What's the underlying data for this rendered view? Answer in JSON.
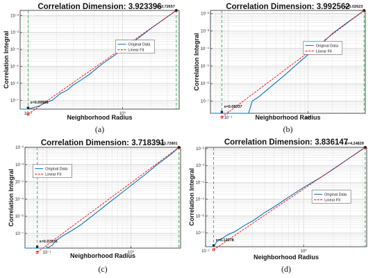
{
  "chart_data": [
    {
      "type": "line",
      "panel_label": "(a)",
      "title": "Correlation Dimension: 3.923396",
      "xlabel": "Neighborhood Radius",
      "ylabel": "Correlation Integral",
      "xscale": "log",
      "yscale": "log",
      "xlim": [
        0.082,
        4.0
      ],
      "ylim": [
        3e-08,
        0.02
      ],
      "xticks": [
        {
          "value": 0.1,
          "label": "10⁻¹"
        },
        {
          "value": 1,
          "label": "10⁰"
        }
      ],
      "yticks": [
        {
          "value": 1e-08,
          "label": "10⁻⁸"
        },
        {
          "value": 1e-07,
          "label": "10⁻⁷"
        },
        {
          "value": 1e-06,
          "label": "10⁻⁶"
        },
        {
          "value": 1e-05,
          "label": "10⁻⁵"
        },
        {
          "value": 0.0001,
          "label": "10⁻⁴"
        },
        {
          "value": 0.001,
          "label": "10⁻³"
        },
        {
          "value": 0.01,
          "label": "10⁻²"
        }
      ],
      "grid": true,
      "legend_position": "upper-middle-right",
      "annotations": [
        {
          "text": "x=0.09956",
          "x": 0.09956
        },
        {
          "text": "x=3.72657",
          "x": 3.72657
        }
      ],
      "vlines": [
        0.09956,
        3.72657
      ],
      "series": [
        {
          "name": "Original Data",
          "color": "#0072BD",
          "x": [
            0.082,
            0.0995,
            0.11,
            0.13,
            0.15,
            0.18,
            0.22,
            0.26,
            0.3,
            0.36,
            0.45,
            0.6,
            0.8,
            1.0,
            1.5,
            2.0,
            3.0,
            3.72657
          ],
          "y": [
            3e-08,
            3e-08,
            3.5e-08,
            4.5e-08,
            7e-08,
            1e-07,
            2.5e-07,
            4e-07,
            8e-07,
            1.5e-06,
            3.5e-06,
            1.3e-05,
            4e-05,
            0.0001,
            0.0005,
            0.0017,
            0.0085,
            0.02
          ]
        },
        {
          "name": "Linear Fit",
          "color": "#FF0000",
          "x": [
            0.09956,
            3.72657
          ],
          "y": [
            1.5e-08,
            0.02
          ]
        }
      ]
    },
    {
      "type": "line",
      "panel_label": "(b)",
      "title": "Correlation Dimension: 3.992562",
      "xlabel": "Neighborhood Radius",
      "ylabel": "Correlation Integral",
      "xscale": "log",
      "yscale": "log",
      "xlim": [
        0.06,
        5.2
      ],
      "ylim": [
        2e-08,
        0.015
      ],
      "xticks": [
        {
          "value": 0.1,
          "label": "10⁻¹"
        },
        {
          "value": 1,
          "label": "10⁰"
        }
      ],
      "yticks": [
        {
          "value": 1e-08,
          "label": "10⁻⁸"
        },
        {
          "value": 1e-07,
          "label": "10⁻⁷"
        },
        {
          "value": 1e-06,
          "label": "10⁻⁶"
        },
        {
          "value": 1e-05,
          "label": "10⁻⁵"
        },
        {
          "value": 0.0001,
          "label": "10⁻⁴"
        },
        {
          "value": 0.001,
          "label": "10⁻³"
        },
        {
          "value": 0.01,
          "label": "10⁻²"
        }
      ],
      "grid": true,
      "legend_position": "upper-middle-right",
      "annotations": [
        {
          "text": "x=0.08337",
          "x": 0.08337
        },
        {
          "text": "x=5.02623",
          "x": 5.02623
        }
      ],
      "vlines": [
        0.08337,
        5.02623
      ],
      "series": [
        {
          "name": "Original Data",
          "color": "#0072BD",
          "x": [
            0.06,
            0.08337,
            0.12,
            0.16,
            0.18,
            0.2,
            0.24,
            0.3,
            0.4,
            0.5,
            0.7,
            1.0,
            1.5,
            2.0,
            3.0,
            4.0,
            5.02623
          ],
          "y": [
            2e-08,
            2e-08,
            2e-08,
            2e-08,
            2e-08,
            1e-07,
            1.7e-07,
            4e-07,
            1.2e-06,
            2.8e-06,
            1.1e-05,
            4.5e-05,
            0.0002,
            0.0007,
            0.0028,
            0.007,
            0.015
          ]
        },
        {
          "name": "Linear Fit",
          "color": "#FF0000",
          "x": [
            0.08337,
            5.02623
          ],
          "y": [
            1.2e-08,
            0.015
          ]
        }
      ]
    },
    {
      "type": "line",
      "panel_label": "(c)",
      "title": "Correlation Dimension: 3.718391",
      "xlabel": "Neighborhood Radius",
      "ylabel": "Correlation Integral",
      "xscale": "log",
      "yscale": "log",
      "xlim": [
        0.055,
        3.9
      ],
      "ylim": [
        1.4e-08,
        0.01
      ],
      "xticks": [
        {
          "value": 0.1,
          "label": "10⁻¹"
        },
        {
          "value": 1,
          "label": "10⁰"
        }
      ],
      "yticks": [
        {
          "value": 1e-07,
          "label": "10⁻⁷"
        },
        {
          "value": 1e-06,
          "label": "10⁻⁶"
        },
        {
          "value": 1e-05,
          "label": "10⁻⁵"
        },
        {
          "value": 0.0001,
          "label": "10⁻⁴"
        },
        {
          "value": 0.001,
          "label": "10⁻³"
        },
        {
          "value": 0.01,
          "label": "10⁻²"
        }
      ],
      "grid": true,
      "legend_position": "upper-left",
      "annotations": [
        {
          "text": "x=0.07676",
          "x": 0.07676
        },
        {
          "text": "x=3.72801",
          "x": 3.72801
        }
      ],
      "vlines": [
        0.07676,
        3.72801
      ],
      "series": [
        {
          "name": "Original Data",
          "color": "#0072BD",
          "x": [
            0.055,
            0.07676,
            0.09,
            0.1,
            0.115,
            0.13,
            0.16,
            0.2,
            0.25,
            0.3,
            0.4,
            0.6,
            1.0,
            1.5,
            2.0,
            3.0,
            3.72801
          ],
          "y": [
            1.4e-08,
            1.4e-08,
            1.4e-08,
            1.4e-08,
            2e-08,
            4e-08,
            8e-08,
            1.5e-07,
            3e-07,
            6e-07,
            1.8e-06,
            8.5e-06,
            6e-05,
            0.00028,
            0.0009,
            0.004,
            0.01
          ]
        },
        {
          "name": "Linear Fit",
          "color": "#FF0000",
          "x": [
            0.07676,
            3.72801
          ],
          "y": [
            8e-09,
            0.01
          ]
        }
      ]
    },
    {
      "type": "line",
      "panel_label": "(d)",
      "title": "Correlation Dimension: 3.836147",
      "xlabel": "Neighborhood Radius",
      "ylabel": "Correlation Integral",
      "xscale": "log",
      "yscale": "log",
      "xlim": [
        0.1,
        4.4
      ],
      "ylim": [
        1.5e-08,
        0.012
      ],
      "xticks": [
        {
          "value": 0.1,
          "label": "10⁻¹"
        },
        {
          "value": 1,
          "label": "10⁰"
        }
      ],
      "yticks": [
        {
          "value": 1e-07,
          "label": "10⁻⁷"
        },
        {
          "value": 1e-06,
          "label": "10⁻⁶"
        },
        {
          "value": 1e-05,
          "label": "10⁻⁵"
        },
        {
          "value": 0.0001,
          "label": "10⁻⁴"
        },
        {
          "value": 0.001,
          "label": "10⁻³"
        },
        {
          "value": 0.01,
          "label": "10⁻²"
        }
      ],
      "grid": true,
      "legend_position": "right-middle",
      "annotations": [
        {
          "text": "x=0.12078",
          "x": 0.12078
        },
        {
          "text": "x=4.24829",
          "x": 4.24829
        }
      ],
      "vlines": [
        0.12078,
        4.24829
      ],
      "series": [
        {
          "name": "Original Data",
          "color": "#0072BD",
          "x": [
            0.1,
            0.12078,
            0.13,
            0.15,
            0.17,
            0.2,
            0.25,
            0.3,
            0.4,
            0.5,
            0.7,
            1.0,
            1.5,
            2.0,
            3.0,
            4.24829
          ],
          "y": [
            1.5e-08,
            1.5e-08,
            3e-08,
            5e-08,
            8e-08,
            1.2e-07,
            2.8e-07,
            5e-07,
            1.6e-06,
            3.5e-06,
            1.3e-05,
            5e-05,
            0.0002,
            0.0006,
            0.003,
            0.012
          ]
        },
        {
          "name": "Linear Fit",
          "color": "#FF0000",
          "x": [
            0.12078,
            4.24829
          ],
          "y": [
            1e-08,
            0.012
          ]
        }
      ]
    }
  ]
}
